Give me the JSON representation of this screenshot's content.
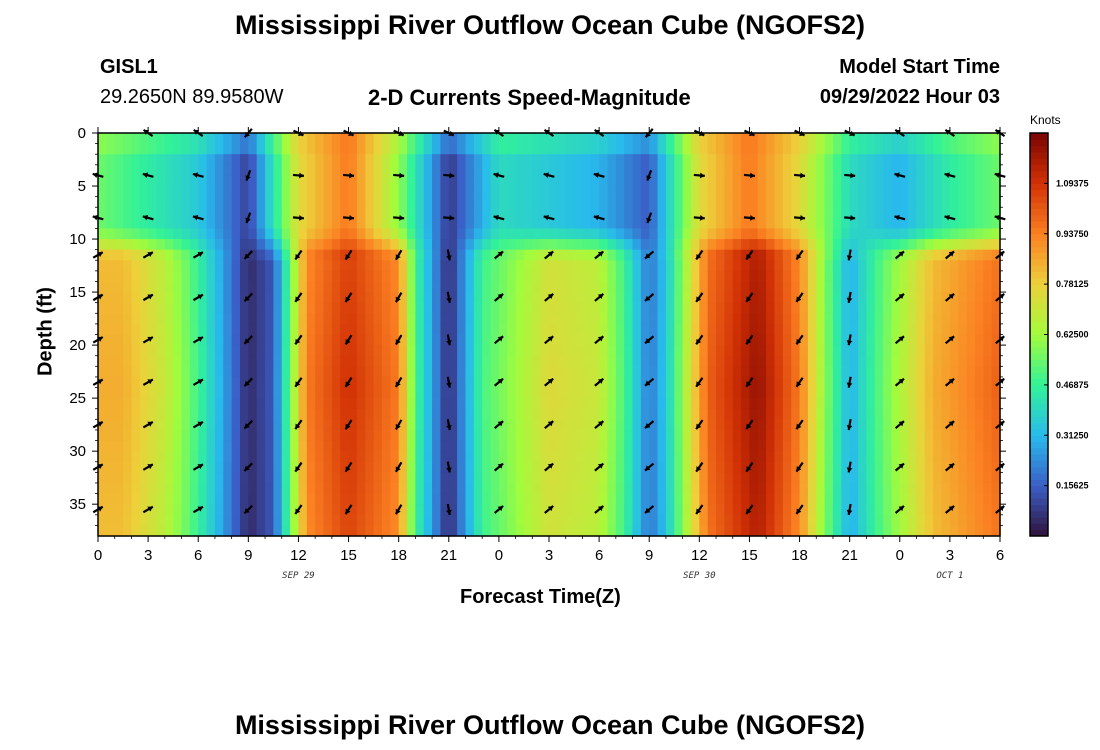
{
  "page": {
    "title_top": "Mississippi River Outflow Ocean Cube (NGOFS2)",
    "title_bottom": "Mississippi River Outflow Ocean Cube (NGOFS2)",
    "station_id": "GISL1",
    "station_coords": "29.2650N  89.9580W",
    "center_title": "2-D Currents Speed-Magnitude",
    "model_start_label": "Model Start Time",
    "model_start_value": "09/29/2022 Hour 03"
  },
  "colors": {
    "colormap": [
      "#30123b",
      "#3b5ec6",
      "#28bbec",
      "#32f298",
      "#a2fc3c",
      "#edd03a",
      "#fb8022",
      "#d23105",
      "#7a0403"
    ]
  },
  "chart_data": {
    "type": "heatmap",
    "title": "2-D Currents Speed-Magnitude",
    "xlabel": "Forecast Time(Z)",
    "ylabel": "Depth (ft)",
    "x_hours_from_start": [
      0,
      3,
      6,
      9,
      12,
      15,
      18,
      21,
      24,
      27,
      30,
      33,
      36,
      39,
      42,
      45,
      48,
      51,
      54
    ],
    "x_tick_labels": [
      "0",
      "3",
      "6",
      "9",
      "12",
      "15",
      "18",
      "21",
      "0",
      "3",
      "6",
      "9",
      "12",
      "15",
      "18",
      "21",
      "0",
      "3",
      "6"
    ],
    "date_labels": [
      {
        "text": "SEP 29",
        "hour": 12
      },
      {
        "text": "SEP 30",
        "hour": 36
      },
      {
        "text": "OCT 1",
        "hour": 51
      }
    ],
    "y_ticks": [
      0,
      5,
      10,
      15,
      20,
      25,
      30,
      35
    ],
    "y_tick_labels": [
      "0",
      "5",
      "10",
      "15",
      "20",
      "25",
      "30",
      "35"
    ],
    "ylim": [
      0,
      38
    ],
    "xlim": [
      0,
      54
    ],
    "colorbar": {
      "unit": "Knots",
      "range": [
        0,
        1.25
      ],
      "tick_values": [
        1.09375,
        0.9375,
        0.78125,
        0.625,
        0.46875,
        0.3125,
        0.15625
      ],
      "tick_labels": [
        "1.09375",
        "0.93750",
        "0.78125",
        "0.62500",
        "0.46875",
        "0.31250",
        "0.15625"
      ]
    },
    "surface_speed_by_hour": [
      [
        0,
        0.55
      ],
      [
        3,
        0.45
      ],
      [
        6,
        0.35
      ],
      [
        9,
        0.1
      ],
      [
        12,
        0.75
      ],
      [
        15,
        0.95
      ],
      [
        18,
        0.6
      ],
      [
        21,
        0.08
      ],
      [
        24,
        0.4
      ],
      [
        27,
        0.35
      ],
      [
        30,
        0.3
      ],
      [
        33,
        0.15
      ],
      [
        36,
        0.75
      ],
      [
        39,
        0.95
      ],
      [
        42,
        0.75
      ],
      [
        45,
        0.4
      ],
      [
        48,
        0.3
      ],
      [
        51,
        0.45
      ],
      [
        54,
        0.55
      ]
    ],
    "deep_speed_by_hour": [
      [
        0,
        0.85
      ],
      [
        1.5,
        0.85
      ],
      [
        4,
        0.7
      ],
      [
        5.5,
        0.55
      ],
      [
        7,
        0.35
      ],
      [
        9,
        0.05
      ],
      [
        10.5,
        0.15
      ],
      [
        12.5,
        0.95
      ],
      [
        15,
        1.1
      ],
      [
        18,
        0.95
      ],
      [
        19,
        0.5
      ],
      [
        21,
        0.05
      ],
      [
        23,
        0.5
      ],
      [
        27,
        0.75
      ],
      [
        30,
        0.7
      ],
      [
        31.5,
        0.5
      ],
      [
        33,
        0.2
      ],
      [
        34,
        0.35
      ],
      [
        36.5,
        1.0
      ],
      [
        39.5,
        1.2
      ],
      [
        42,
        0.95
      ],
      [
        43.5,
        0.6
      ],
      [
        45,
        0.3
      ],
      [
        47,
        0.55
      ],
      [
        50,
        0.85
      ],
      [
        54,
        1.0
      ]
    ],
    "arrow_rows_depth_ft": [
      0,
      4,
      8,
      11.5,
      15.5,
      19.5,
      23.5,
      27.5,
      31.5,
      35.5
    ],
    "arrow_directions_deg_by_hour": [
      [
        0,
        330
      ],
      [
        6,
        330
      ],
      [
        9,
        135
      ],
      [
        12,
        125
      ],
      [
        18,
        120
      ],
      [
        21,
        80
      ],
      [
        24,
        320
      ],
      [
        30,
        320
      ],
      [
        33,
        140
      ],
      [
        36,
        125
      ],
      [
        42,
        125
      ],
      [
        45,
        100
      ],
      [
        48,
        320
      ],
      [
        54,
        320
      ]
    ]
  }
}
